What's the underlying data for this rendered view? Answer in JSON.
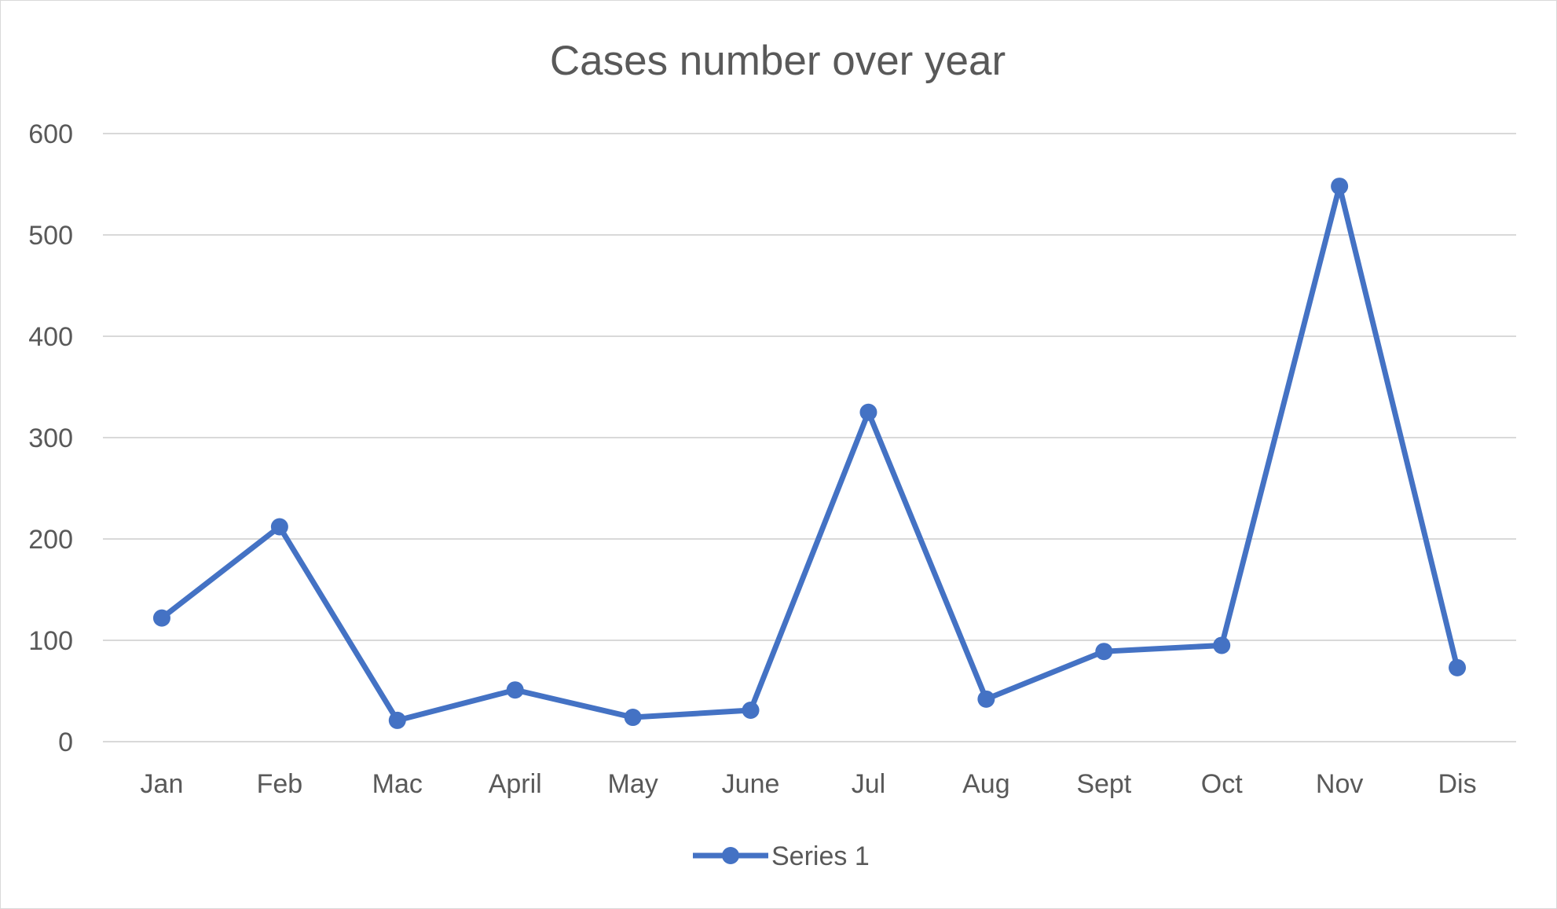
{
  "chart_data": {
    "type": "line",
    "title": "Cases number over year",
    "xlabel": "",
    "ylabel": "",
    "categories": [
      "Jan",
      "Feb",
      "Mac",
      "April",
      "May",
      "June",
      "Jul",
      "Aug",
      "Sept",
      "Oct",
      "Nov",
      "Dis"
    ],
    "series": [
      {
        "name": "Series 1",
        "values": [
          122,
          212,
          21,
          51,
          24,
          31,
          325,
          42,
          89,
          95,
          548,
          73
        ],
        "color": "#4472c4"
      }
    ],
    "ylim": [
      0,
      600
    ],
    "yticks": [
      "0",
      "100",
      "200",
      "300",
      "400",
      "500",
      "600"
    ],
    "grid": true,
    "legend_position": "bottom"
  }
}
